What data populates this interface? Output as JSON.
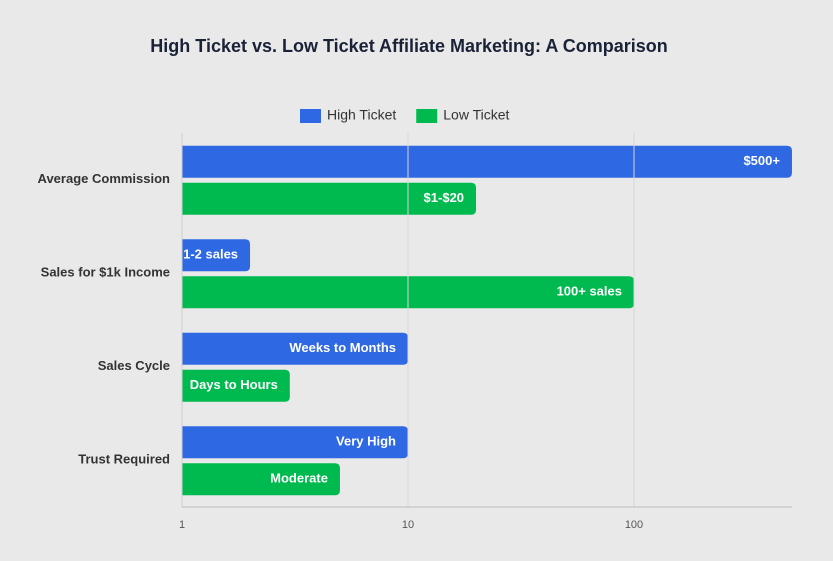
{
  "chart_data": {
    "type": "bar",
    "orientation": "horizontal",
    "title": "High Ticket vs. Low Ticket Affiliate Marketing: A Comparison",
    "categories": [
      "Average Commission",
      "Sales for $1k Income",
      "Sales Cycle",
      "Trust Required"
    ],
    "series": [
      {
        "name": "High Ticket",
        "color": "#2f68e3",
        "values": [
          500,
          2,
          10,
          10
        ],
        "value_labels": [
          "$500+",
          "1-2 sales",
          "Weeks to Months",
          "Very High"
        ]
      },
      {
        "name": "Low Ticket",
        "color": "#00b94f",
        "values": [
          20,
          100,
          3,
          5
        ],
        "value_labels": [
          "$1-$20",
          "100+ sales",
          "Days to Hours",
          "Moderate"
        ]
      }
    ],
    "xscale": "log",
    "xlim": [
      1,
      500
    ],
    "xticks": [
      1,
      10,
      100
    ],
    "grid": true,
    "legend": "top"
  }
}
